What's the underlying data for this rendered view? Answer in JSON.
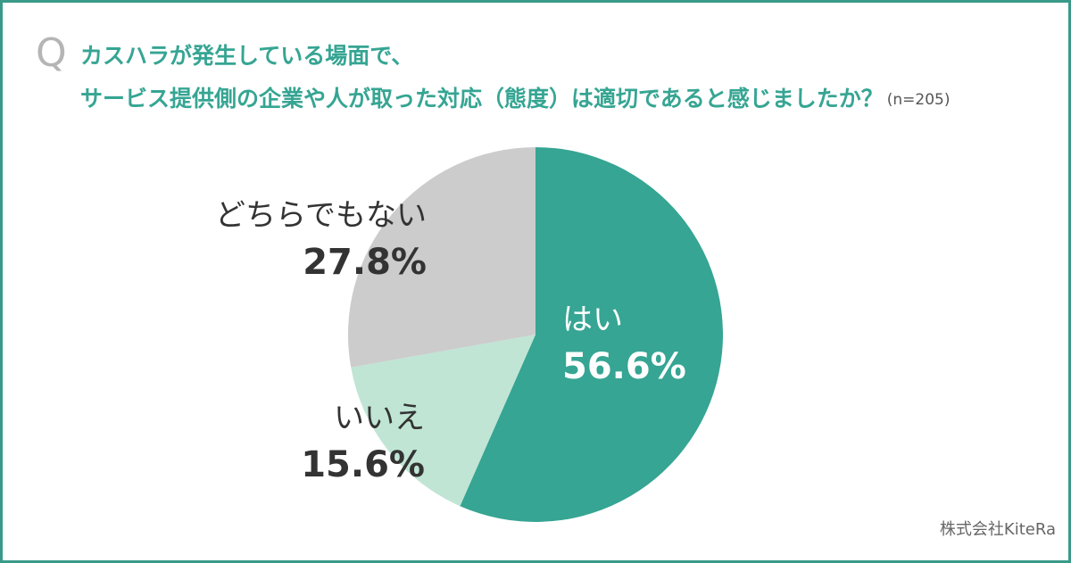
{
  "chart_data": {
    "type": "pie",
    "marker": "Q",
    "title_lines": [
      "カスハラが発生している場面で、",
      "サービス提供側の企業や人が取った対応（態度）は適切であると感じましたか？"
    ],
    "subtitle": "(n=205)",
    "categories": [
      "はい",
      "いいえ",
      "どちらでもない"
    ],
    "values": [
      56.6,
      15.6,
      27.8
    ],
    "value_labels": [
      "56.6%",
      "15.6%",
      "27.8%"
    ],
    "colors": [
      "#36a593",
      "#c0e5d4",
      "#cccccc"
    ],
    "source": "株式会社KiteRa"
  }
}
